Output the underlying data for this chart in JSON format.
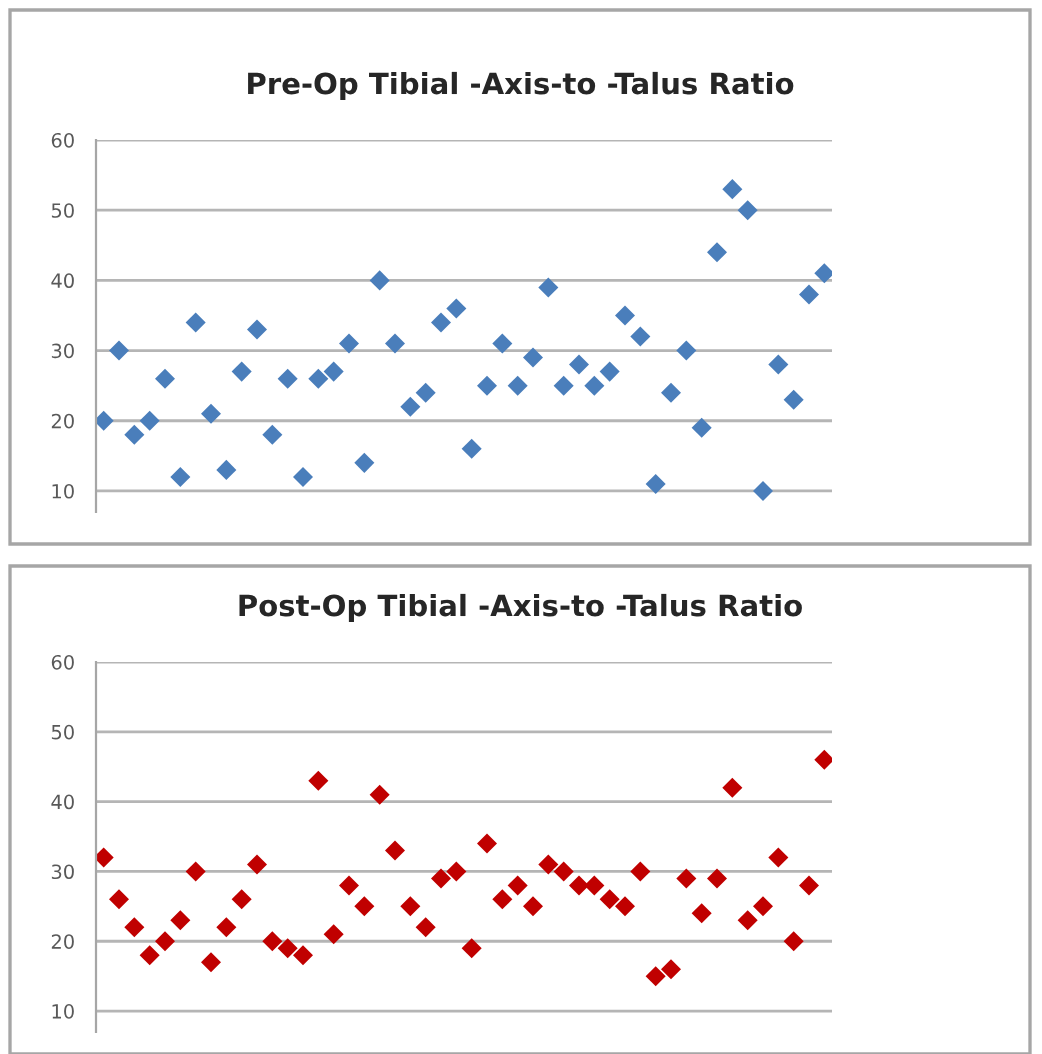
{
  "chart_data": [
    {
      "type": "scatter",
      "title": "Pre-Op Tibial -Axis-to -Talus Ratio",
      "categories": [
        null,
        null,
        null,
        null,
        null,
        null,
        null,
        null,
        null,
        null,
        null,
        null,
        null,
        null,
        null,
        null,
        null,
        null,
        null,
        null,
        null,
        null,
        null,
        null,
        null,
        null,
        null,
        null,
        null,
        null,
        null,
        null,
        null,
        null,
        null,
        null,
        null,
        null,
        null,
        null,
        null,
        null,
        null,
        null,
        null,
        null,
        null,
        null
      ],
      "series": [
        {
          "color": "#4a7ebb",
          "values": [
            20,
            30,
            18,
            20,
            26,
            12,
            34,
            21,
            13,
            27,
            33,
            18,
            26,
            12,
            26,
            27,
            31,
            14,
            40,
            31,
            22,
            24,
            34,
            36,
            16,
            25,
            31,
            25,
            29,
            39,
            25,
            28,
            25,
            27,
            35,
            32,
            11,
            24,
            30,
            19,
            44,
            53,
            50,
            10,
            28,
            23,
            38,
            41
          ]
        }
      ],
      "ylim": [
        7,
        60
      ],
      "yticks": [
        10,
        20,
        30,
        40,
        50,
        60
      ],
      "grid": "y",
      "marker": "diamond",
      "legend": false,
      "tick_labels": "y"
    },
    {
      "type": "scatter",
      "title": "Post-Op Tibial -Axis-to -Talus Ratio",
      "categories": [
        null,
        null,
        null,
        null,
        null,
        null,
        null,
        null,
        null,
        null,
        null,
        null,
        null,
        null,
        null,
        null,
        null,
        null,
        null,
        null,
        null,
        null,
        null,
        null,
        null,
        null,
        null,
        null,
        null,
        null,
        null,
        null,
        null,
        null,
        null,
        null,
        null,
        null,
        null,
        null,
        null,
        null,
        null,
        null,
        null,
        null,
        null,
        null
      ],
      "series": [
        {
          "color": "#c00000",
          "values": [
            32,
            26,
            22,
            18,
            20,
            23,
            30,
            17,
            22,
            26,
            31,
            20,
            19,
            18,
            43,
            21,
            28,
            25,
            41,
            33,
            25,
            22,
            29,
            30,
            19,
            34,
            26,
            28,
            25,
            31,
            30,
            28,
            28,
            26,
            25,
            30,
            15,
            16,
            29,
            24,
            29,
            42,
            23,
            25,
            32,
            20,
            28,
            46
          ]
        }
      ],
      "ylim": [
        7,
        60
      ],
      "yticks": [
        10,
        20,
        30,
        40,
        50,
        60
      ],
      "grid": "y",
      "marker": "diamond",
      "legend": false,
      "tick_labels": "y"
    }
  ]
}
